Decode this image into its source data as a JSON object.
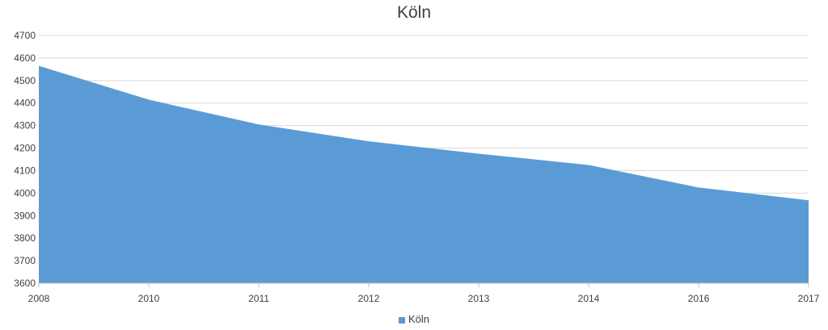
{
  "chart_data": {
    "type": "area",
    "title": "Köln",
    "xlabel": "",
    "ylabel": "",
    "categories": [
      "2008",
      "2010",
      "2011",
      "2012",
      "2013",
      "2014",
      "2016",
      "2017"
    ],
    "series": [
      {
        "name": "Köln",
        "color": "#5b9bd5",
        "values": [
          4565,
          4415,
          4305,
          4230,
          4175,
          4125,
          4025,
          3968
        ]
      }
    ],
    "ylim": [
      3600,
      4700
    ],
    "yticks": [
      3600,
      3700,
      3800,
      3900,
      4000,
      4100,
      4200,
      4300,
      4400,
      4500,
      4600,
      4700
    ],
    "grid": true,
    "legend": "bottom"
  }
}
